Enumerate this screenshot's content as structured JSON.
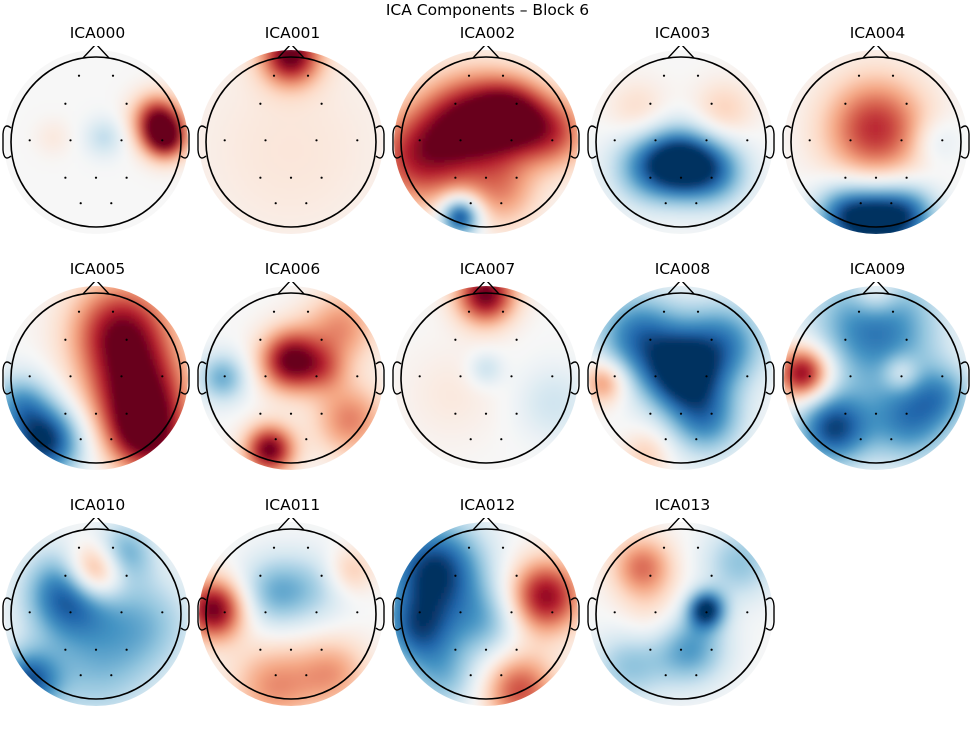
{
  "figure": {
    "title": "ICA Components – Block 6"
  },
  "colors": {
    "negative": "#053061",
    "neutral": "#f7f7f7",
    "positive": "#67001f",
    "outline": "#000000"
  },
  "chart_data": {
    "type": "heatmap",
    "subtype": "topomap-grid",
    "title": "ICA Components – Block 6",
    "colormap": "RdBu_r",
    "grid": {
      "rows": 3,
      "cols": 5
    },
    "sensors": [
      [
        -0.2,
        -0.78
      ],
      [
        0.2,
        -0.78
      ],
      [
        -0.36,
        -0.45
      ],
      [
        0.36,
        -0.45
      ],
      [
        -0.78,
        -0.02
      ],
      [
        -0.3,
        -0.02
      ],
      [
        0.3,
        -0.02
      ],
      [
        0.78,
        -0.02
      ],
      [
        -0.36,
        0.42
      ],
      [
        0.0,
        0.42
      ],
      [
        0.36,
        0.42
      ],
      [
        -0.18,
        0.72
      ],
      [
        0.18,
        0.72
      ]
    ],
    "components": [
      {
        "name": "ICA000",
        "blobs": [
          [
            0.82,
            -0.05,
            0.18,
            1.0
          ],
          [
            0.72,
            -0.28,
            0.2,
            0.75
          ],
          [
            0.1,
            -0.05,
            0.16,
            -0.25
          ],
          [
            -0.5,
            -0.05,
            0.15,
            0.1
          ]
        ]
      },
      {
        "name": "ICA001",
        "blobs": [
          [
            0.0,
            -1.02,
            0.24,
            1.0
          ],
          [
            0.0,
            0.1,
            0.9,
            0.12
          ]
        ]
      },
      {
        "name": "ICA002",
        "blobs": [
          [
            -0.2,
            -0.2,
            0.4,
            0.95
          ],
          [
            0.3,
            -0.3,
            0.3,
            0.85
          ],
          [
            -0.8,
            0.2,
            0.4,
            0.7
          ],
          [
            0.8,
            -0.1,
            0.3,
            0.6
          ],
          [
            -0.3,
            0.88,
            0.16,
            -1.0
          ],
          [
            0.2,
            0.6,
            0.3,
            0.4
          ]
        ]
      },
      {
        "name": "ICA003",
        "blobs": [
          [
            0.0,
            0.25,
            0.28,
            -0.95
          ],
          [
            -0.4,
            0.3,
            0.3,
            -0.55
          ],
          [
            0.4,
            0.35,
            0.28,
            -0.6
          ],
          [
            0.5,
            -0.35,
            0.25,
            0.25
          ],
          [
            -0.5,
            -0.35,
            0.25,
            0.2
          ]
        ]
      },
      {
        "name": "ICA004",
        "blobs": [
          [
            0.0,
            0.95,
            0.28,
            -1.0
          ],
          [
            -0.4,
            0.85,
            0.25,
            -0.6
          ],
          [
            0.4,
            0.85,
            0.25,
            -0.6
          ],
          [
            0.0,
            -0.15,
            0.42,
            0.75
          ],
          [
            0.7,
            0.0,
            0.2,
            -0.2
          ]
        ]
      },
      {
        "name": "ICA005",
        "blobs": [
          [
            -0.6,
            0.75,
            0.3,
            -1.0
          ],
          [
            -0.9,
            0.3,
            0.25,
            -0.5
          ],
          [
            0.5,
            0.2,
            0.4,
            0.95
          ],
          [
            0.3,
            -0.55,
            0.4,
            0.9
          ],
          [
            0.6,
            0.7,
            0.3,
            0.85
          ]
        ]
      },
      {
        "name": "ICA006",
        "blobs": [
          [
            0.0,
            -0.2,
            0.25,
            1.0
          ],
          [
            -0.25,
            0.85,
            0.2,
            1.0
          ],
          [
            0.7,
            0.5,
            0.3,
            0.5
          ],
          [
            -0.8,
            0.0,
            0.2,
            -0.5
          ],
          [
            0.6,
            -0.6,
            0.3,
            0.45
          ],
          [
            0.4,
            -0.1,
            0.2,
            0.35
          ]
        ]
      },
      {
        "name": "ICA007",
        "blobs": [
          [
            0.0,
            -0.98,
            0.24,
            1.0
          ],
          [
            0.0,
            -0.1,
            0.14,
            -0.25
          ],
          [
            0.8,
            0.3,
            0.3,
            -0.2
          ],
          [
            -0.4,
            0.2,
            0.4,
            0.1
          ]
        ]
      },
      {
        "name": "ICA008",
        "blobs": [
          [
            0.0,
            -0.05,
            0.32,
            -1.0
          ],
          [
            -0.5,
            -0.5,
            0.35,
            -0.7
          ],
          [
            0.5,
            -0.4,
            0.35,
            -0.65
          ],
          [
            0.3,
            0.5,
            0.3,
            -0.6
          ],
          [
            -0.9,
            0.05,
            0.18,
            0.5
          ],
          [
            -0.4,
            0.9,
            0.2,
            0.25
          ]
        ]
      },
      {
        "name": "ICA009",
        "blobs": [
          [
            -0.85,
            -0.05,
            0.22,
            1.0
          ],
          [
            0.0,
            -0.6,
            0.5,
            -0.75
          ],
          [
            -0.5,
            0.6,
            0.3,
            -0.9
          ],
          [
            0.4,
            0.5,
            0.35,
            -0.65
          ],
          [
            0.3,
            -0.05,
            0.15,
            0.35
          ],
          [
            0.0,
            -1.0,
            0.2,
            0.4
          ],
          [
            0.8,
            0.2,
            0.25,
            -0.4
          ]
        ]
      },
      {
        "name": "ICA010",
        "blobs": [
          [
            0.0,
            -0.5,
            0.25,
            1.0
          ],
          [
            -0.3,
            -0.25,
            0.35,
            -0.9
          ],
          [
            0.3,
            -0.7,
            0.25,
            -0.6
          ],
          [
            0.0,
            0.6,
            0.5,
            -0.4
          ],
          [
            0.6,
            0.1,
            0.4,
            -0.35
          ],
          [
            -0.8,
            0.8,
            0.25,
            -0.8
          ]
        ]
      },
      {
        "name": "ICA011",
        "blobs": [
          [
            -0.9,
            -0.05,
            0.25,
            1.0
          ],
          [
            -0.2,
            -0.25,
            0.3,
            -0.45
          ],
          [
            0.3,
            -0.3,
            0.3,
            -0.25
          ],
          [
            -0.2,
            0.85,
            0.35,
            0.45
          ],
          [
            0.5,
            0.7,
            0.3,
            0.4
          ],
          [
            0.7,
            -0.5,
            0.2,
            0.3
          ]
        ]
      },
      {
        "name": "ICA012",
        "blobs": [
          [
            -0.6,
            -0.5,
            0.4,
            -1.0
          ],
          [
            -0.8,
            0.2,
            0.3,
            -0.7
          ],
          [
            0.7,
            -0.2,
            0.3,
            0.9
          ],
          [
            0.4,
            0.9,
            0.3,
            0.65
          ],
          [
            0.0,
            0.1,
            0.3,
            -0.4
          ],
          [
            -0.5,
            0.75,
            0.3,
            -0.4
          ]
        ]
      },
      {
        "name": "ICA013",
        "blobs": [
          [
            0.3,
            -0.05,
            0.15,
            -1.0
          ],
          [
            -0.45,
            -0.55,
            0.25,
            0.55
          ],
          [
            0.1,
            0.4,
            0.3,
            -0.6
          ],
          [
            -0.6,
            0.6,
            0.3,
            -0.4
          ],
          [
            0.7,
            -0.6,
            0.3,
            -0.4
          ],
          [
            -0.3,
            0.1,
            0.3,
            0.2
          ]
        ]
      }
    ]
  }
}
